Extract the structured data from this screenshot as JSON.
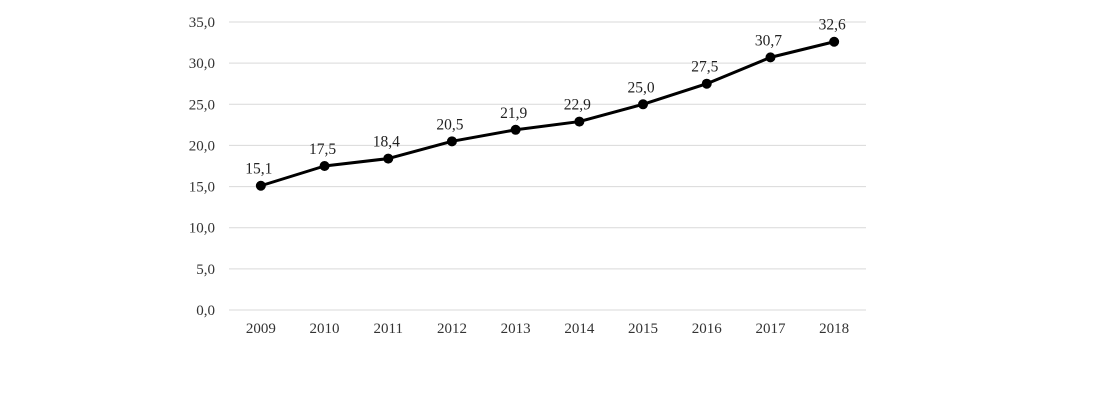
{
  "chart_data": {
    "type": "line",
    "title": "",
    "xlabel": "",
    "ylabel": "",
    "categories": [
      "2009",
      "2010",
      "2011",
      "2012",
      "2013",
      "2014",
      "2015",
      "2016",
      "2017",
      "2018"
    ],
    "series": [
      {
        "values": [
          15.1,
          17.5,
          18.4,
          20.5,
          21.9,
          22.9,
          25.0,
          27.5,
          30.7,
          32.6
        ],
        "labels": [
          "15,1",
          "17,5",
          "18,4",
          "20,5",
          "21,9",
          "22,9",
          "25,0",
          "27,5",
          "30,7",
          "32,6"
        ],
        "color": "#000000"
      }
    ],
    "ylim": [
      0,
      35
    ],
    "yticks": [
      0,
      5,
      10,
      15,
      20,
      25,
      30,
      35
    ],
    "ytick_labels": [
      "0,0",
      "5,0",
      "10,0",
      "15,0",
      "20,0",
      "25,0",
      "30,0",
      "35,0"
    ],
    "grid": true,
    "legend": "none",
    "gridline_color": "#d9d9d9"
  }
}
